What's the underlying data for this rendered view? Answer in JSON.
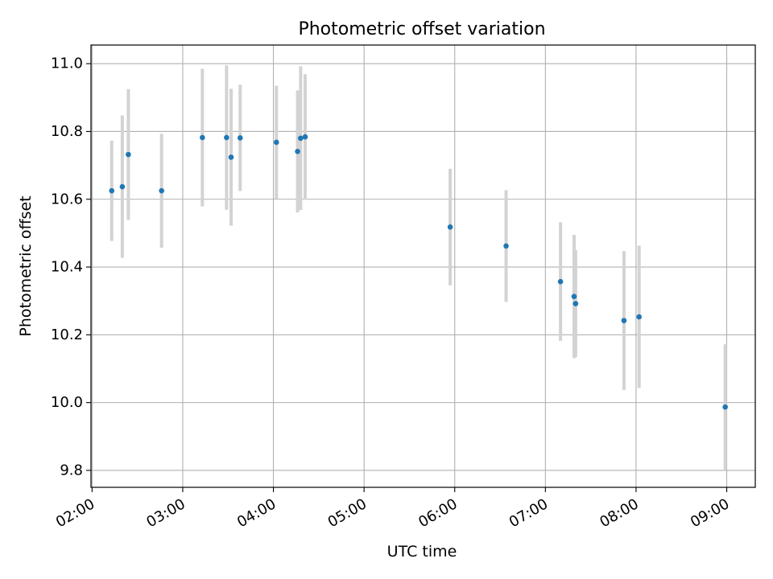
{
  "chart_data": {
    "type": "scatter",
    "title": "Photometric offset variation",
    "xlabel": "UTC time",
    "ylabel": "Photometric offset",
    "x_unit": "hours UTC",
    "xlim": [
      1.988,
      9.315
    ],
    "ylim": [
      9.75,
      11.055
    ],
    "x_ticks": [
      2,
      3,
      4,
      5,
      6,
      7,
      8,
      9
    ],
    "x_tick_labels": [
      "02:00",
      "03:00",
      "04:00",
      "05:00",
      "06:00",
      "07:00",
      "08:00",
      "09:00"
    ],
    "y_ticks": [
      9.8,
      10.0,
      10.2,
      10.4,
      10.6,
      10.8,
      11.0
    ],
    "y_tick_labels": [
      "9.8",
      "10.0",
      "10.2",
      "10.4",
      "10.6",
      "10.8",
      "11.0"
    ],
    "grid": true,
    "legend": false,
    "marker_color": "#1f77b4",
    "errorbar_color": "#d3d3d3",
    "points": [
      {
        "time": "02:13",
        "y": 10.625,
        "err": 0.148
      },
      {
        "time": "02:20",
        "y": 10.637,
        "err": 0.21
      },
      {
        "time": "02:24",
        "y": 10.732,
        "err": 0.193
      },
      {
        "time": "02:46",
        "y": 10.625,
        "err": 0.168
      },
      {
        "time": "03:13",
        "y": 10.782,
        "err": 0.203
      },
      {
        "time": "03:29",
        "y": 10.782,
        "err": 0.213
      },
      {
        "time": "03:32",
        "y": 10.724,
        "err": 0.202
      },
      {
        "time": "03:38",
        "y": 10.781,
        "err": 0.157
      },
      {
        "time": "04:02",
        "y": 10.768,
        "err": 0.167
      },
      {
        "time": "04:16",
        "y": 10.741,
        "err": 0.18
      },
      {
        "time": "04:18",
        "y": 10.78,
        "err": 0.212
      },
      {
        "time": "04:21",
        "y": 10.784,
        "err": 0.185
      },
      {
        "time": "05:57",
        "y": 10.518,
        "err": 0.172
      },
      {
        "time": "06:34",
        "y": 10.462,
        "err": 0.165
      },
      {
        "time": "07:10",
        "y": 10.357,
        "err": 0.175
      },
      {
        "time": "07:19",
        "y": 10.313,
        "err": 0.182
      },
      {
        "time": "07:20",
        "y": 10.292,
        "err": 0.158
      },
      {
        "time": "07:52",
        "y": 10.242,
        "err": 0.205
      },
      {
        "time": "08:02",
        "y": 10.253,
        "err": 0.21
      },
      {
        "time": "08:59",
        "y": 9.987,
        "err": 0.185
      }
    ]
  }
}
